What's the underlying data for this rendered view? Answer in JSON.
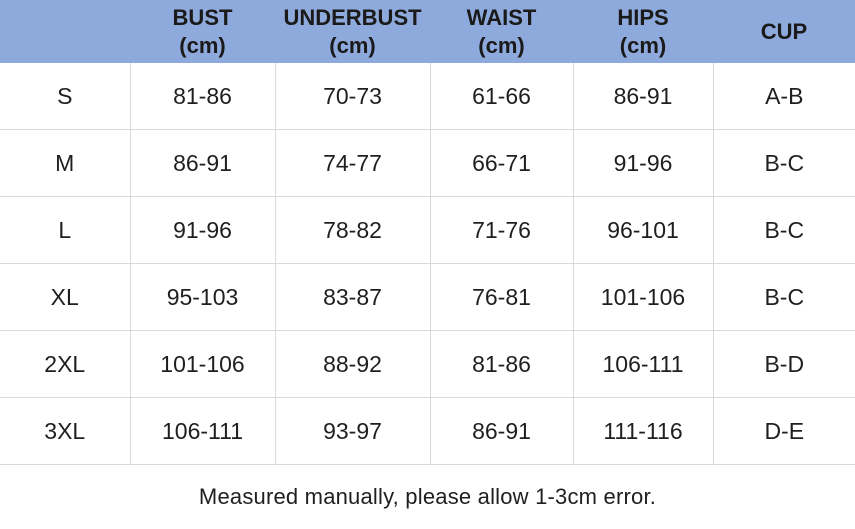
{
  "chart_data": {
    "type": "table",
    "columns": [
      {
        "label": "",
        "unit": ""
      },
      {
        "label": "BUST",
        "unit": "(cm)"
      },
      {
        "label": "UNDERBUST",
        "unit": "(cm)"
      },
      {
        "label": "WAIST",
        "unit": "(cm)"
      },
      {
        "label": "HIPS",
        "unit": "(cm)"
      },
      {
        "label": "CUP",
        "unit": ""
      }
    ],
    "rows": [
      {
        "size": "S",
        "values": [
          "81-86",
          "70-73",
          "61-66",
          "86-91",
          "A-B"
        ]
      },
      {
        "size": "M",
        "values": [
          "86-91",
          "74-77",
          "66-71",
          "91-96",
          "B-C"
        ]
      },
      {
        "size": "L",
        "values": [
          "91-96",
          "78-82",
          "71-76",
          "96-101",
          "B-C"
        ]
      },
      {
        "size": "XL",
        "values": [
          "95-103",
          "83-87",
          "76-81",
          "101-106",
          "B-C"
        ]
      },
      {
        "size": "2XL",
        "values": [
          "101-106",
          "88-92",
          "81-86",
          "106-111",
          "B-D"
        ]
      },
      {
        "size": "3XL",
        "values": [
          "106-111",
          "93-97",
          "86-91",
          "111-116",
          "D-E"
        ]
      }
    ],
    "note": "Measured manually, please allow 1-3cm error.",
    "layout_hints": {
      "grid": "on",
      "header_position": "top"
    }
  },
  "colors": {
    "header_bg": "#8ea9db",
    "border": "#d9d9d9",
    "text": "#1a1a1a"
  }
}
